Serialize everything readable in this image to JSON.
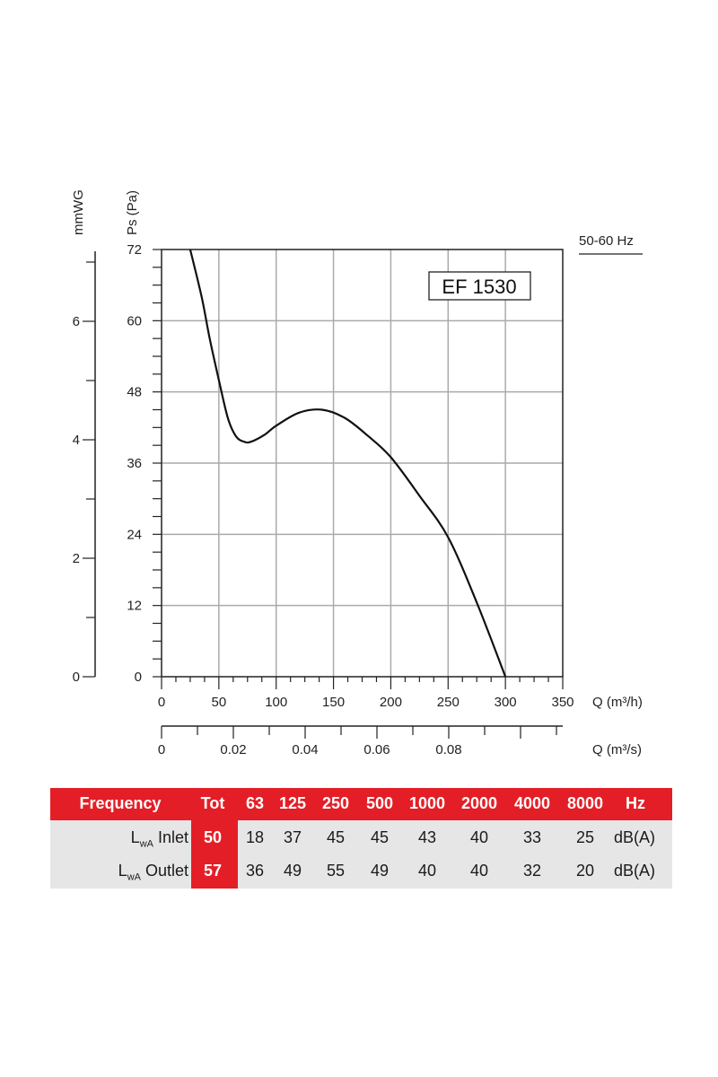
{
  "chart_data": {
    "type": "line",
    "title": "EF 1530",
    "frequency_note": "50-60 Hz",
    "xlabel": "Q (m³/h)",
    "x2label": "Q (m³/s)",
    "ylabel": "Ps (Pa)",
    "y2label": "mmWG",
    "xlim": [
      0,
      350
    ],
    "ylim": [
      0,
      72
    ],
    "x_ticks": [
      "0",
      "50",
      "100",
      "150",
      "200",
      "250",
      "300",
      "350"
    ],
    "y_ticks": [
      "0",
      "12",
      "24",
      "36",
      "48",
      "60",
      "72"
    ],
    "x2_ticks": [
      "0",
      "0.02",
      "0.04",
      "0.06",
      "0.08"
    ],
    "y2_ticks": [
      "0",
      "2",
      "4",
      "6"
    ],
    "grid": true,
    "series": [
      {
        "name": "EF 1530",
        "x": [
          25,
          35,
          42,
          50,
          58,
          65,
          72,
          78,
          90,
          100,
          120,
          140,
          160,
          180,
          200,
          225,
          250,
          275,
          300
        ],
        "y": [
          72,
          64,
          57,
          50,
          43.5,
          40.5,
          39.6,
          39.6,
          40.8,
          42.3,
          44.5,
          45,
          43.6,
          40.6,
          37,
          30.5,
          23.5,
          12.5,
          0
        ]
      }
    ]
  },
  "sound_table": {
    "header": [
      "Frequency",
      "Tot",
      "63",
      "125",
      "250",
      "500",
      "1000",
      "2000",
      "4000",
      "8000",
      "Hz"
    ],
    "rows": [
      {
        "label_main": "L",
        "label_sub": "wA",
        "label_rest": " Inlet",
        "values": [
          "50",
          "18",
          "37",
          "45",
          "45",
          "43",
          "40",
          "33",
          "25",
          "dB(A)"
        ]
      },
      {
        "label_main": "L",
        "label_sub": "wA",
        "label_rest": " Outlet",
        "values": [
          "57",
          "36",
          "49",
          "55",
          "49",
          "40",
          "40",
          "32",
          "20",
          "dB(A)"
        ]
      }
    ]
  }
}
